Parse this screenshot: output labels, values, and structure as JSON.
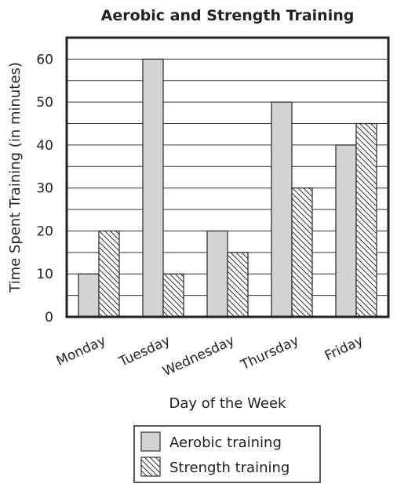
{
  "chart_data": {
    "type": "bar",
    "title": "Aerobic and Strength Training",
    "xlabel": "Day of the Week",
    "ylabel": "Time Spent Training (in minutes)",
    "categories": [
      "Monday",
      "Tuesday",
      "Wednesday",
      "Thursday",
      "Friday"
    ],
    "series": [
      {
        "name": "Aerobic training",
        "values": [
          10,
          60,
          20,
          50,
          40
        ],
        "color": "#d3d3d3",
        "pattern": "solid"
      },
      {
        "name": "Strength training",
        "values": [
          20,
          10,
          15,
          30,
          45
        ],
        "color": "#ffffff",
        "pattern": "hatched"
      }
    ],
    "ylim": [
      0,
      65
    ],
    "yticks": [
      0,
      10,
      20,
      30,
      40,
      50,
      60
    ],
    "grid": true,
    "legend_position": "bottom-center"
  }
}
